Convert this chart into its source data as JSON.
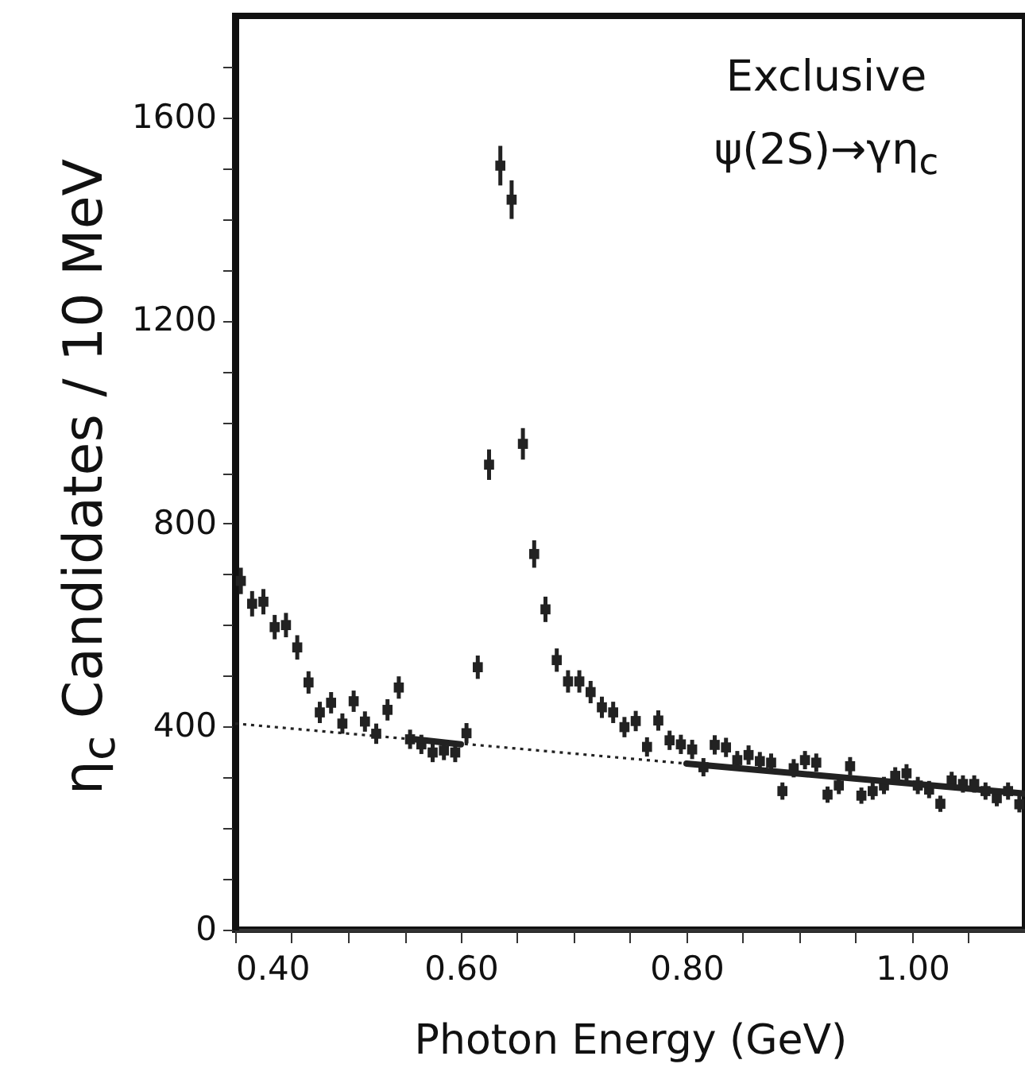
{
  "chart_data": {
    "type": "scatter",
    "xlabel": "Photon Energy (GeV)",
    "ylabel": "η$_{c}$ Candidates / 10 MeV",
    "annotations": [
      "Exclusive",
      "ψ(2S)→γη$_{c}$"
    ],
    "xlim": [
      0.4,
      1.1
    ],
    "ylim": [
      0,
      1800
    ],
    "xticks": [
      {
        "value": 0.4,
        "label": "0.40"
      },
      {
        "value": 0.45,
        "label": null
      },
      {
        "value": 0.5,
        "label": null
      },
      {
        "value": 0.55,
        "label": null
      },
      {
        "value": 0.6,
        "label": "0.60"
      },
      {
        "value": 0.65,
        "label": null
      },
      {
        "value": 0.7,
        "label": null
      },
      {
        "value": 0.75,
        "label": null
      },
      {
        "value": 0.8,
        "label": "0.80"
      },
      {
        "value": 0.85,
        "label": null
      },
      {
        "value": 0.9,
        "label": null
      },
      {
        "value": 0.95,
        "label": null
      },
      {
        "value": 1.0,
        "label": "1.00"
      },
      {
        "value": 1.05,
        "label": null
      }
    ],
    "yticks": [
      0,
      {
        "value": 100,
        "label": null
      },
      {
        "value": 200,
        "label": null
      },
      {
        "value": 300,
        "label": null
      },
      400,
      {
        "value": 500,
        "label": null
      },
      {
        "value": 600,
        "label": null
      },
      {
        "value": 700,
        "label": null
      },
      800,
      {
        "value": 900,
        "label": null
      },
      {
        "value": 1000,
        "label": null
      },
      {
        "value": 1100,
        "label": null
      },
      1200,
      {
        "value": 1300,
        "label": null
      },
      {
        "value": 1400,
        "label": null
      },
      {
        "value": 1500,
        "label": null
      },
      1600,
      {
        "value": 1700,
        "label": null
      }
    ],
    "series": [
      {
        "marker": "square",
        "color": "#222222",
        "x": [
          0.405,
          0.415,
          0.425,
          0.435,
          0.445,
          0.455,
          0.465,
          0.475,
          0.485,
          0.495,
          0.505,
          0.515,
          0.525,
          0.535,
          0.545,
          0.555,
          0.565,
          0.575,
          0.585,
          0.595,
          0.605,
          0.615,
          0.625,
          0.635,
          0.645,
          0.655,
          0.665,
          0.675,
          0.685,
          0.695,
          0.705,
          0.715,
          0.725,
          0.735,
          0.745,
          0.755,
          0.765,
          0.775,
          0.785,
          0.795,
          0.805,
          0.815,
          0.825,
          0.835,
          0.845,
          0.855,
          0.865,
          0.875,
          0.885,
          0.895,
          0.905,
          0.915,
          0.925,
          0.935,
          0.945,
          0.955,
          0.965,
          0.975,
          0.985,
          0.995,
          1.005,
          1.015,
          1.025,
          1.035,
          1.045,
          1.055,
          1.065,
          1.075,
          1.085,
          1.095
        ],
        "values": [
          687,
          642,
          646,
          596,
          600,
          556,
          487,
          428,
          447,
          406,
          450,
          410,
          386,
          433,
          477,
          375,
          365,
          349,
          353,
          349,
          387,
          517,
          916,
          1505,
          1438,
          957,
          740,
          631,
          531,
          489,
          489,
          468,
          438,
          428,
          399,
          411,
          360,
          412,
          373,
          365,
          355,
          320,
          364,
          359,
          334,
          344,
          332,
          329,
          273,
          318,
          334,
          329,
          266,
          284,
          322,
          264,
          273,
          284,
          303,
          308,
          284,
          276,
          248,
          294,
          287,
          287,
          273,
          259,
          273,
          247
        ],
        "errors": [
          26,
          25,
          25,
          24,
          24,
          24,
          22,
          21,
          21,
          20,
          21,
          20,
          20,
          21,
          22,
          19,
          19,
          19,
          19,
          19,
          20,
          23,
          30,
          39,
          38,
          31,
          27,
          25,
          23,
          22,
          22,
          22,
          21,
          21,
          20,
          20,
          19,
          20,
          19,
          19,
          19,
          18,
          19,
          19,
          18,
          19,
          18,
          18,
          17,
          18,
          18,
          18,
          16,
          17,
          18,
          16,
          17,
          17,
          17,
          18,
          17,
          17,
          16,
          17,
          17,
          17,
          17,
          16,
          17,
          16
        ]
      },
      {
        "type": "line",
        "color": "#222222",
        "line_style": "dotted",
        "x": [
          0.4,
          1.1
        ],
        "values": [
          406,
          268
        ]
      },
      {
        "type": "line",
        "color": "#222222",
        "line_style": "solid",
        "x": [
          0.56,
          0.6
        ],
        "values": [
          375,
          365
        ]
      },
      {
        "type": "line",
        "color": "#222222",
        "line_style": "solid",
        "x": [
          0.8,
          1.1
        ],
        "values": [
          327,
          268
        ]
      }
    ]
  }
}
